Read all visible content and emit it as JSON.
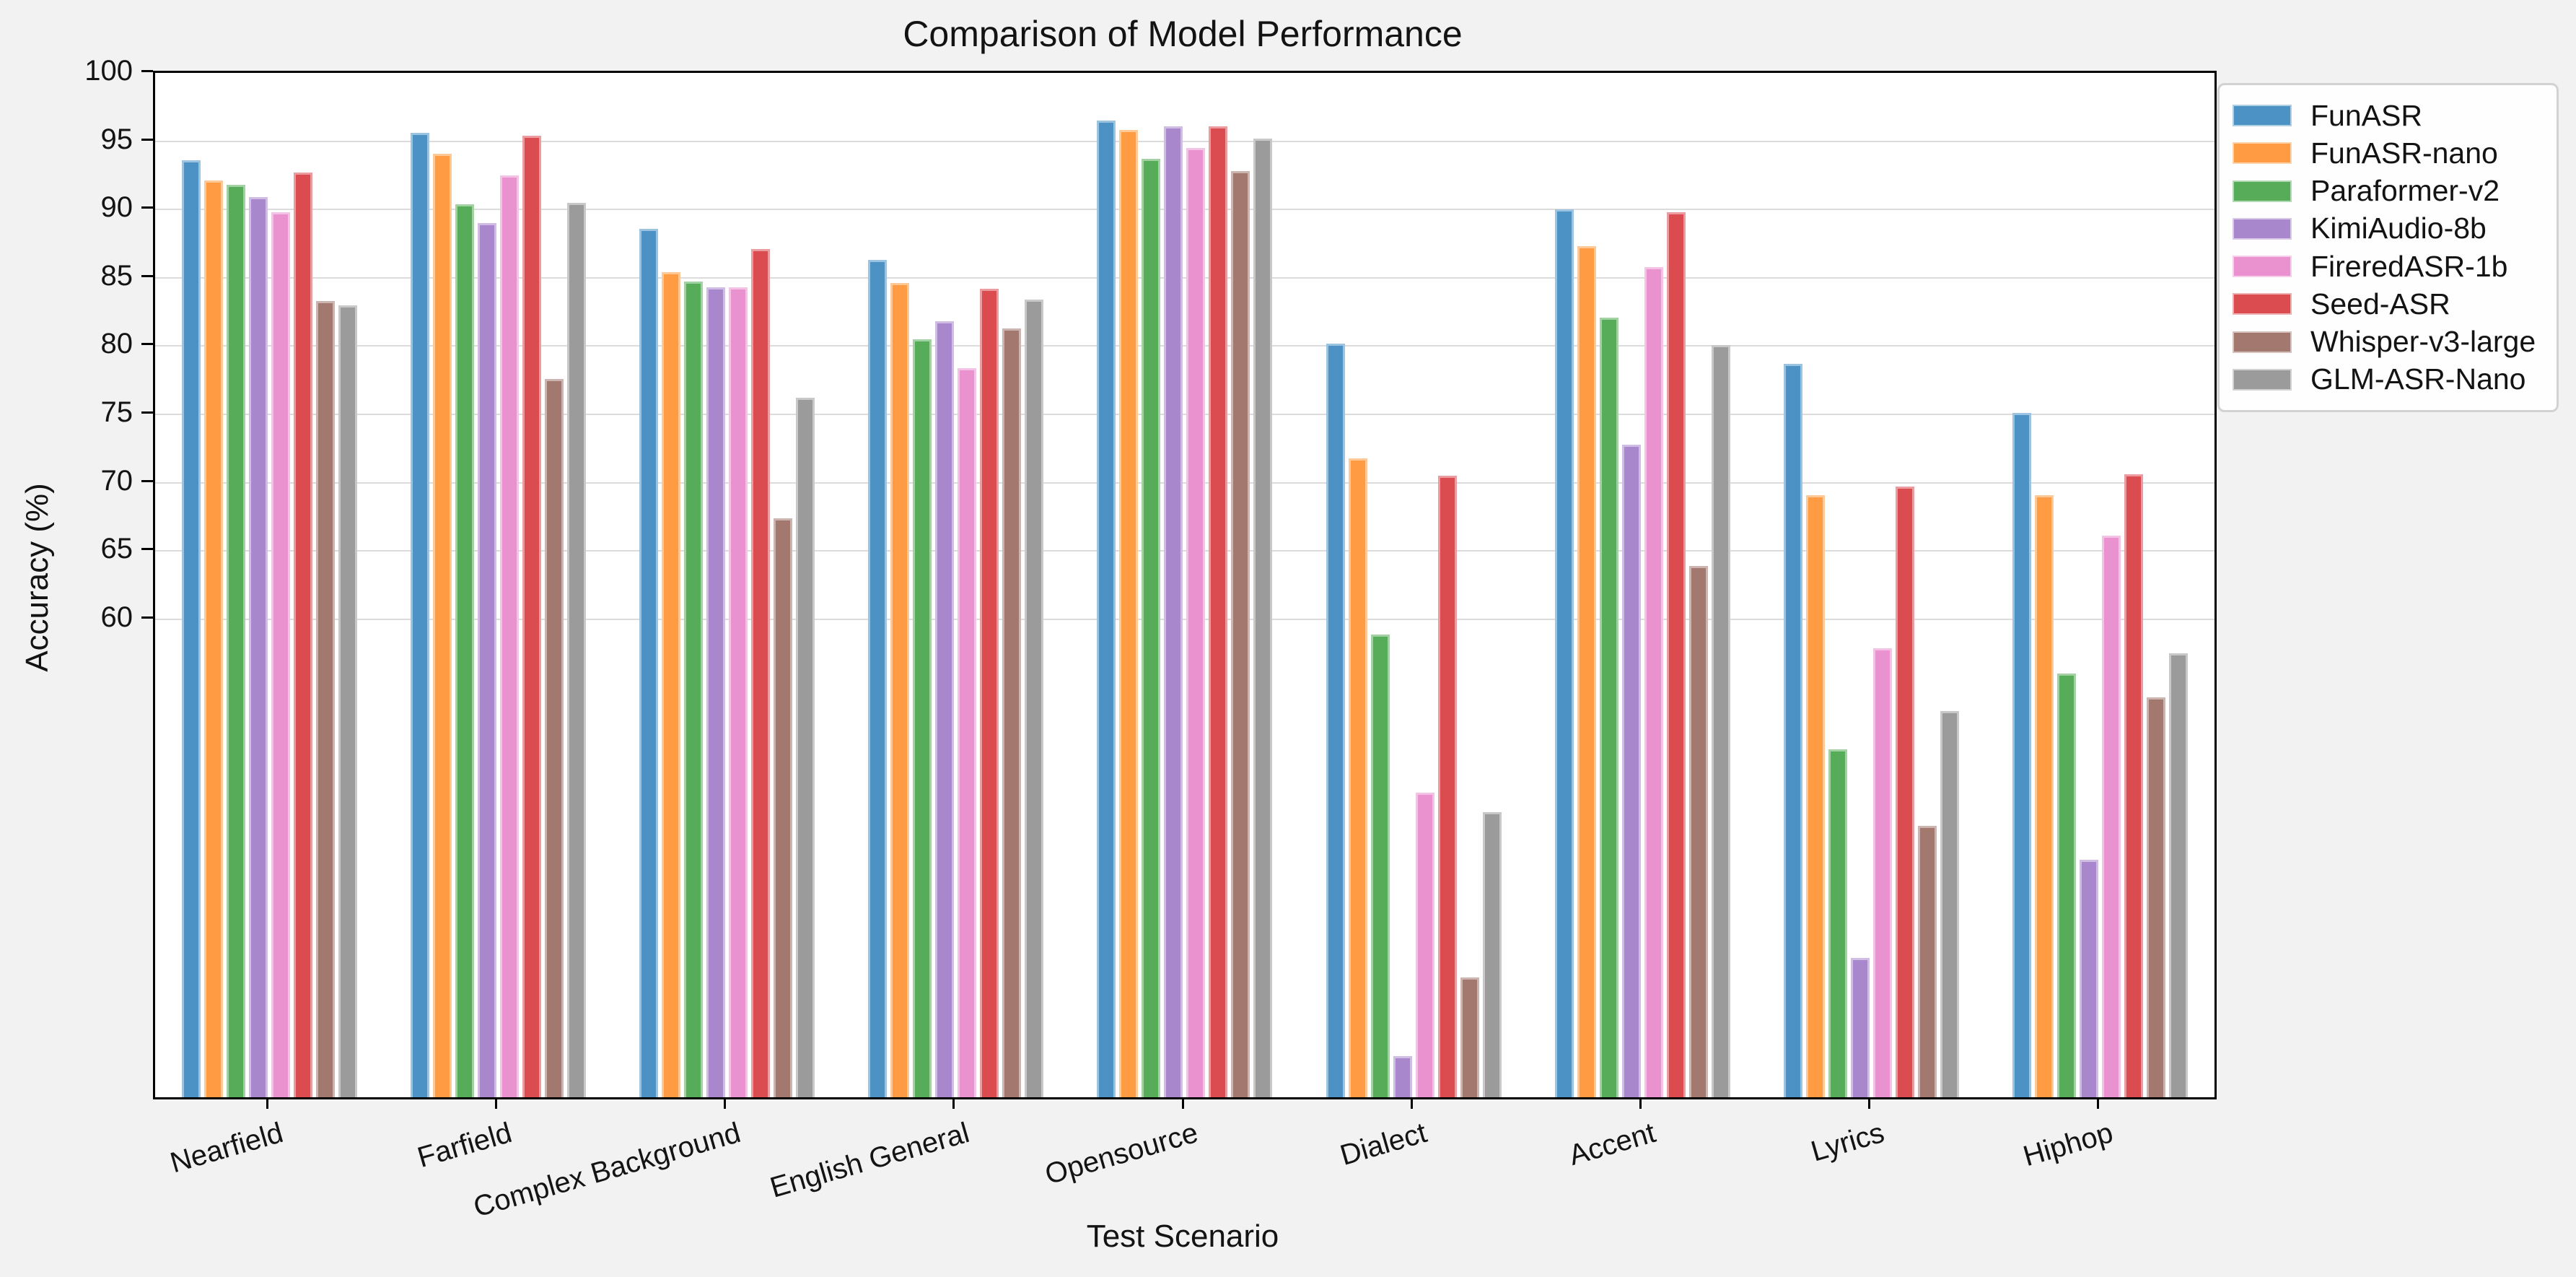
{
  "chart_data": {
    "type": "bar",
    "title": "Comparison of Model Performance",
    "xlabel": "Test Scenario",
    "ylabel": "Accuracy (%)",
    "ylim": [
      25,
      100
    ],
    "yticks": [
      60,
      65,
      70,
      75,
      80,
      85,
      90,
      95,
      100
    ],
    "grid": "horizontal-only",
    "legend_position": "outside-top-right",
    "background_color": "#f2f2f3",
    "plot_background_color": "#ffffff",
    "gridline_color": "#dcdcdc",
    "categories": [
      "Nearfield",
      "Farfield",
      "Complex Background",
      "English General",
      "Opensource",
      "Dialect",
      "Accent",
      "Lyrics",
      "Hiphop"
    ],
    "series": [
      {
        "name": "FunASR",
        "color": "#4C92C5",
        "values": [
          93.6,
          95.6,
          88.6,
          86.3,
          96.5,
          80.2,
          90.0,
          78.7,
          75.1
        ]
      },
      {
        "name": "FunASR-nano",
        "color": "#FF9B42",
        "values": [
          92.1,
          94.1,
          85.4,
          84.6,
          95.8,
          71.8,
          87.3,
          69.1,
          69.1
        ]
      },
      {
        "name": "Paraformer-v2",
        "color": "#57AC59",
        "values": [
          91.8,
          90.4,
          84.7,
          80.5,
          93.7,
          58.9,
          82.1,
          50.5,
          56.0
        ]
      },
      {
        "name": "KimiAudio-8b",
        "color": "#A887CC",
        "values": [
          90.9,
          89.0,
          84.3,
          81.8,
          96.1,
          28.0,
          72.8,
          35.2,
          42.4
        ]
      },
      {
        "name": "FireredASR-1b",
        "color": "#EA92D0",
        "values": [
          89.8,
          92.5,
          84.3,
          78.4,
          94.5,
          47.3,
          85.8,
          57.9,
          66.1
        ]
      },
      {
        "name": "Seed-ASR",
        "color": "#DB4C50",
        "values": [
          92.7,
          95.4,
          87.1,
          84.2,
          96.1,
          70.5,
          89.8,
          69.7,
          70.6
        ]
      },
      {
        "name": "Whisper-v3-large",
        "color": "#A3786F",
        "values": [
          83.3,
          77.6,
          67.4,
          81.3,
          92.8,
          33.8,
          63.9,
          44.9,
          54.3
        ]
      },
      {
        "name": "GLM-ASR-Nano",
        "color": "#9B9B9B",
        "values": [
          83.0,
          90.5,
          76.2,
          83.4,
          95.2,
          45.9,
          80.1,
          53.3,
          57.5
        ]
      }
    ]
  }
}
